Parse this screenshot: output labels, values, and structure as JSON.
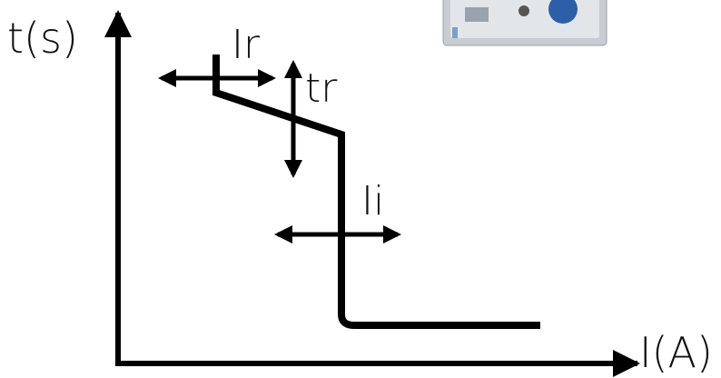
{
  "axes": {
    "y_label": "t(s)",
    "x_label": "I(A)"
  },
  "settings": {
    "ir": "Ir",
    "tr": "tr",
    "ii": "Ii"
  }
}
